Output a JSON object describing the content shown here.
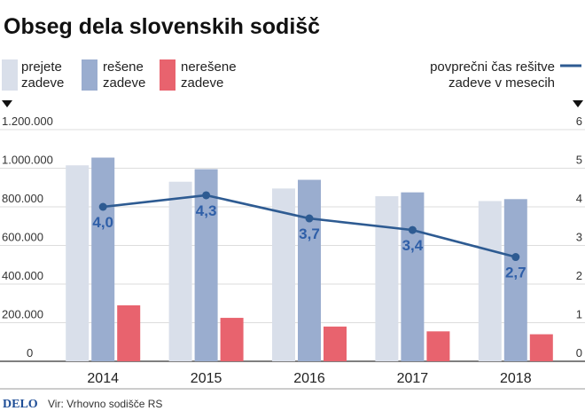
{
  "header": {
    "title": "Obseg dela slovenskih sodišč"
  },
  "legend": {
    "prejete": [
      "prejete",
      "zadeve"
    ],
    "resene": [
      "rešene",
      "zadeve"
    ],
    "neresene": [
      "nerešene",
      "zadeve"
    ],
    "line": [
      "povprečni čas rešitve",
      "zadeve v mesecih"
    ]
  },
  "footer": {
    "brand": "DELO",
    "source": "Vir: Vrhovno sodišče RS"
  },
  "colors": {
    "prejete": "#d9dfea",
    "resene": "#9aadcf",
    "neresene": "#e8636e",
    "line": "#2e5b92"
  },
  "chart_data": {
    "type": "bar",
    "categories": [
      "2014",
      "2015",
      "2016",
      "2017",
      "2018"
    ],
    "series": [
      {
        "name": "prejete zadeve",
        "axis": "left",
        "values": [
          1015000,
          930000,
          895000,
          855000,
          830000
        ]
      },
      {
        "name": "rešene zadeve",
        "axis": "left",
        "values": [
          1055000,
          995000,
          940000,
          875000,
          840000
        ]
      },
      {
        "name": "nerešene zadeve",
        "axis": "left",
        "values": [
          290000,
          225000,
          180000,
          155000,
          140000
        ]
      },
      {
        "name": "povprečni čas rešitve zadeve v mesecih",
        "type": "line",
        "axis": "right",
        "values": [
          4.0,
          4.3,
          3.7,
          3.4,
          2.7
        ],
        "labels": [
          "4,0",
          "4,3",
          "3,7",
          "3,4",
          "2,7"
        ]
      }
    ],
    "y_left": {
      "ylim": [
        0,
        1200000
      ],
      "ticks": [
        "0",
        "200.000",
        "400.000",
        "600.000",
        "800.000",
        "1.000.000",
        "1.200.000"
      ]
    },
    "y_right": {
      "ylim": [
        0,
        6
      ],
      "ticks": [
        "0",
        "1",
        "2",
        "3",
        "4",
        "5",
        "6"
      ]
    },
    "grid": true
  }
}
